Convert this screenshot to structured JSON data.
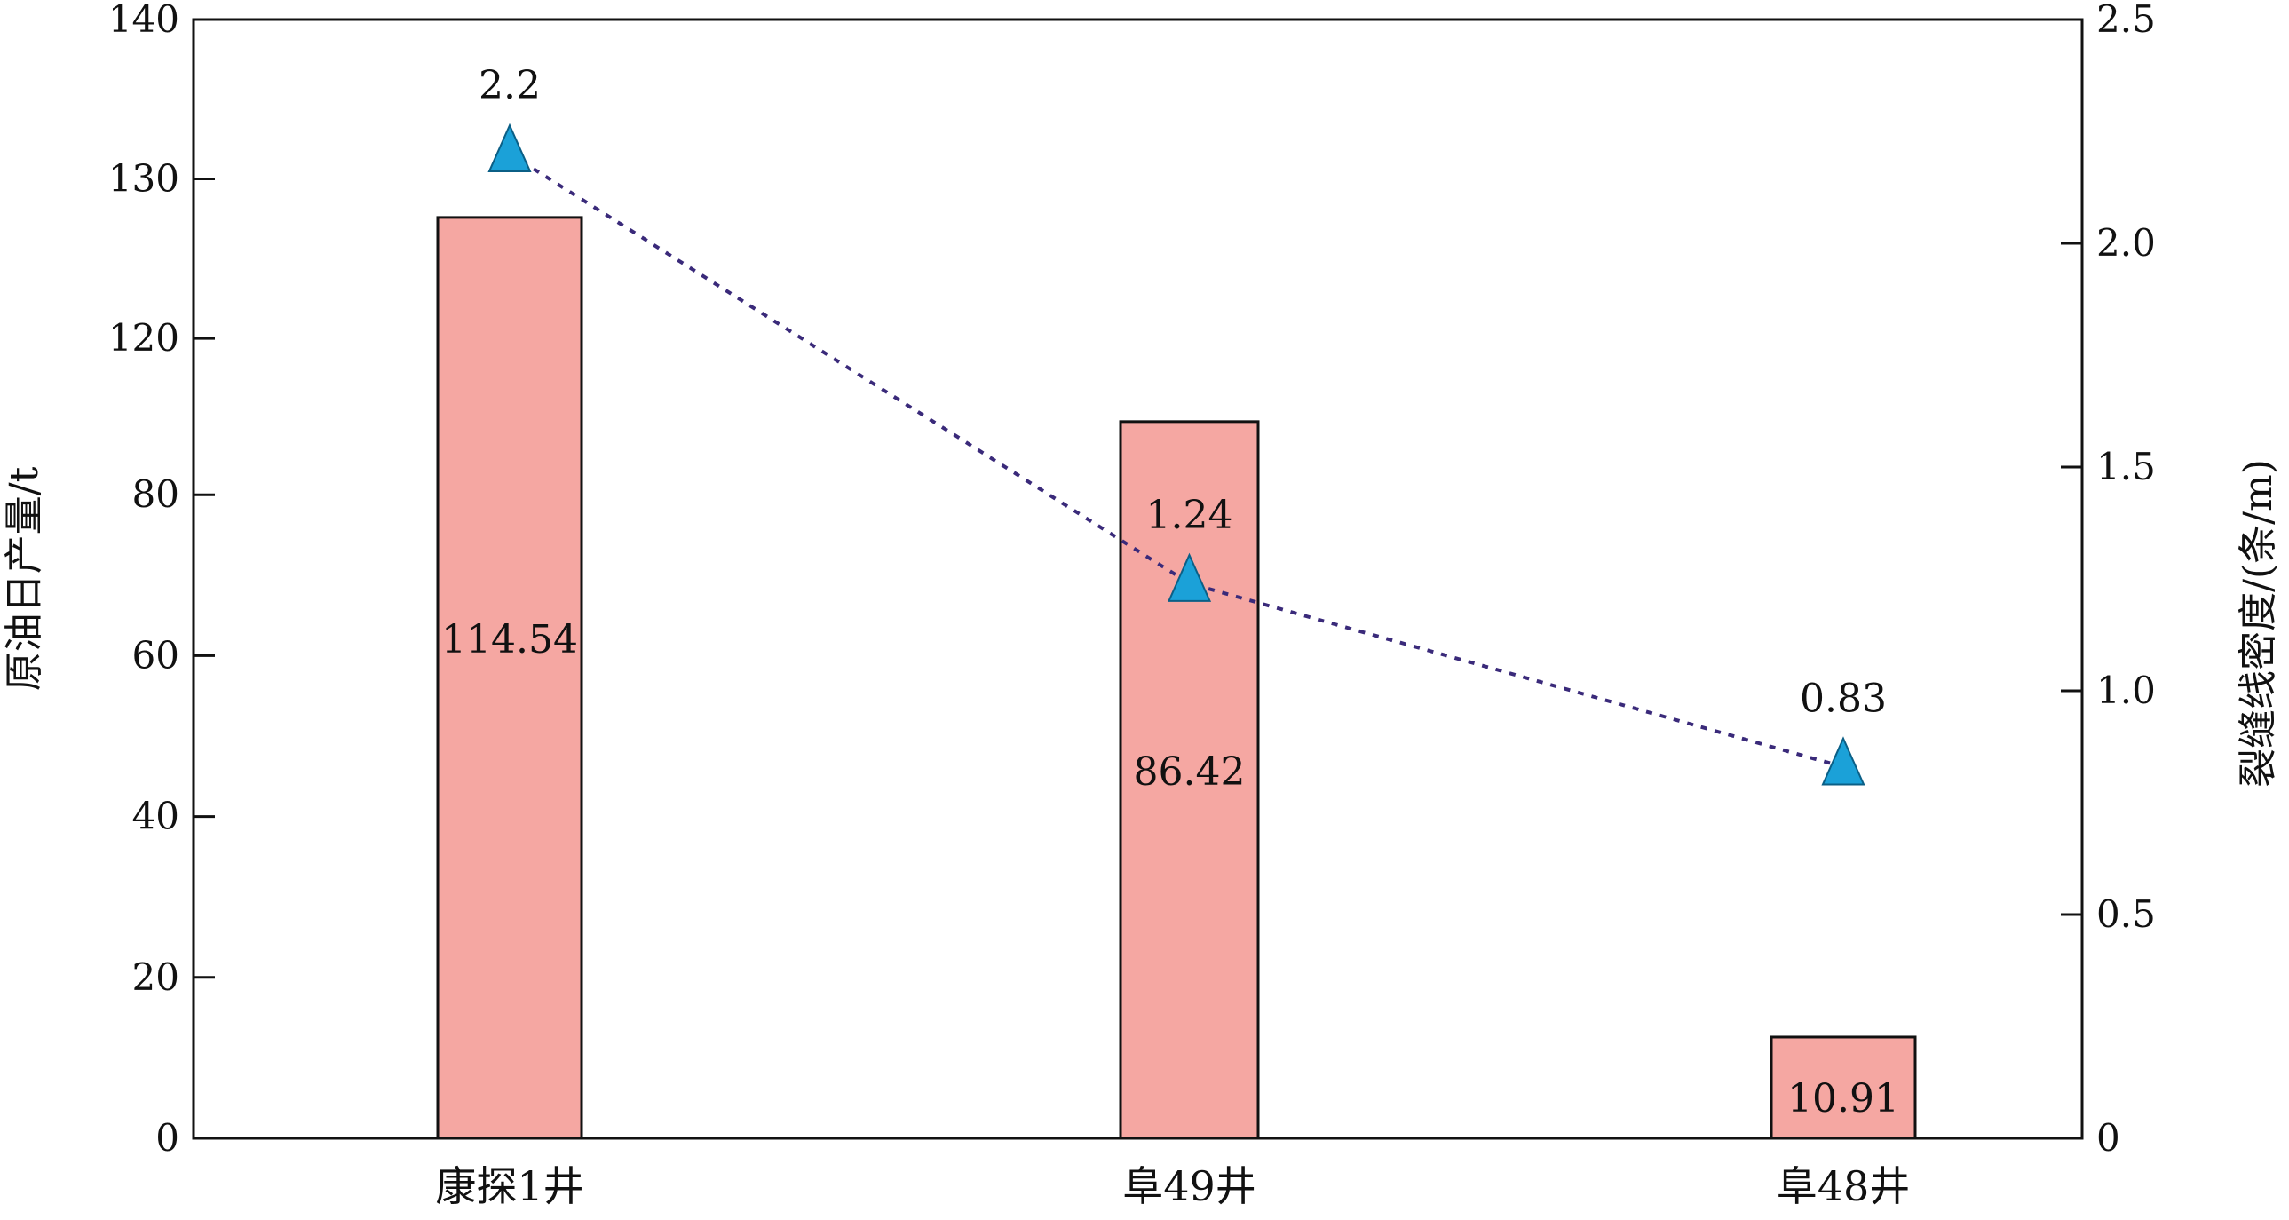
{
  "chart_data": {
    "type": "bar",
    "categories": [
      "康探1井",
      "阜49井",
      "阜48井"
    ],
    "series": [
      {
        "kind": "bar",
        "axis": "left",
        "values": [
          114.54,
          86.42,
          10.91
        ],
        "labels": [
          "114.54",
          "86.42",
          "10.91"
        ],
        "color": "#f5a7a2"
      },
      {
        "kind": "line",
        "axis": "right",
        "values": [
          2.2,
          1.24,
          0.83
        ],
        "labels": [
          "2.2",
          "1.24",
          "0.83"
        ],
        "marker": "triangle",
        "marker_color": "#1ba1d8",
        "line_color": "#3a2a7a",
        "line_style": "dotted"
      }
    ],
    "ylabel": "原油日产量/t",
    "y2label": "裂缝线密度/(条/m)",
    "y_ticks": [
      "0",
      "20",
      "40",
      "60",
      "80",
      "120",
      "130",
      "140"
    ],
    "y2_ticks": [
      "0",
      "0.5",
      "1.0",
      "1.5",
      "2.0",
      "2.5"
    ],
    "y2lim": [
      0,
      2.5
    ],
    "grid": false,
    "legend": "none"
  }
}
